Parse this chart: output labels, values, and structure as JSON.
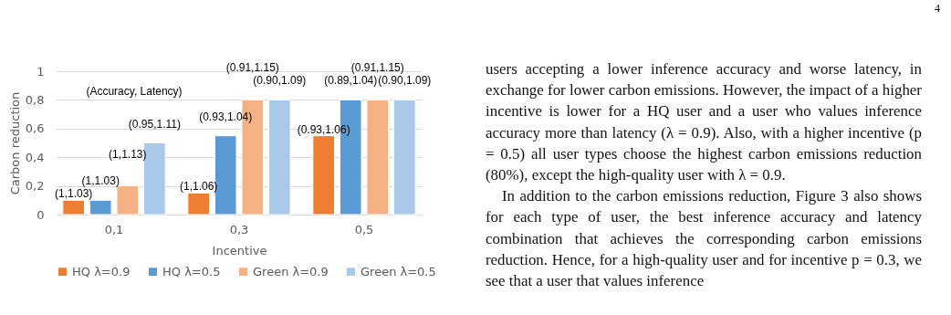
{
  "chart_data": {
    "type": "bar",
    "xlabel": "Incentive",
    "ylabel": "Carbon reduction",
    "categories": [
      "0,1",
      "0,3",
      "0,5"
    ],
    "series": [
      {
        "name": "HQ λ=0.9",
        "color": "#ed7d31",
        "values": [
          0.1,
          0.15,
          0.55
        ],
        "value_labels": [
          "(1,1.03)",
          "(1,1.06)",
          "(0.93,1.06)"
        ]
      },
      {
        "name": "HQ λ=0.5",
        "color": "#5b9bd5",
        "values": [
          0.1,
          0.55,
          0.8
        ],
        "value_labels": [
          "(1,1.03)",
          "(0.93,1.04)",
          "(0.89,1.04)"
        ]
      },
      {
        "name": "Green λ=0.9",
        "color": "#f4b183",
        "values": [
          0.2,
          0.8,
          0.8
        ],
        "value_labels": [
          "(1,1.13)",
          "(0.91,1.15)",
          "(0.91,1.15)"
        ]
      },
      {
        "name": "Green λ=0.5",
        "color": "#a9c9ea",
        "values": [
          0.5,
          0.8,
          0.8
        ],
        "value_labels": [
          "(0.95,1.11)",
          "(0.90,1.09)",
          "(0.90,1.09)"
        ]
      }
    ],
    "ylim": [
      0,
      1
    ],
    "yticks": [
      0,
      {
        "value": 0.2,
        "label": "0,2"
      },
      {
        "value": 0.4,
        "label": "0,4"
      },
      {
        "value": 0.6,
        "label": "0,6"
      },
      {
        "value": 0.8,
        "label": "0,8"
      },
      1
    ],
    "grid": "y",
    "legend": "bottom",
    "annotations": [
      "(Accuracy, Latency)",
      "4",
      "users accepting a lower inference accuracy and worse latency, in exchange for lower carbon emissions. However, the impact of a higher incentive is lower for a HQ user and a user who values inference accuracy more than latency (λ = 0.9). Also, with a higher incentive (p = 0.5) all user types choose the highest carbon emissions reduction (80%), except the high-quality user with λ = 0.9.",
      "In addition to the carbon emissions reduction, Figure 3 also shows for each type of user, the best inference accuracy and latency combination that achieves the corresponding carbon emissions reduction. Hence, for a high-quality user and for incentive p = 0.3, we see that a user that values inference"
    ]
  }
}
